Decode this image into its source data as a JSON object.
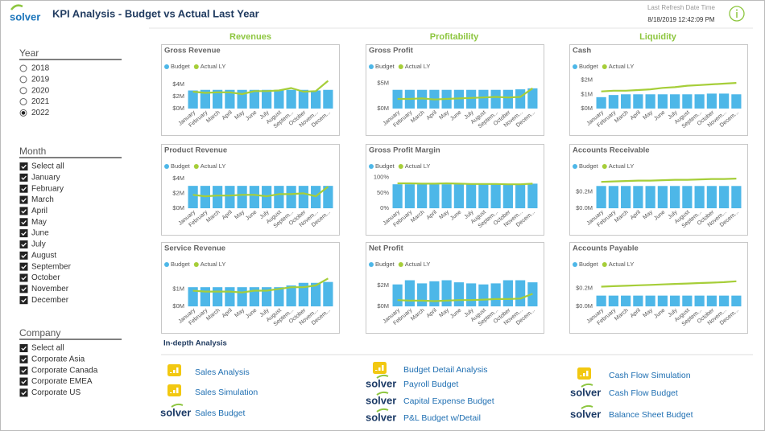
{
  "header": {
    "brand": "solver",
    "title": "KPI Analysis - Budget vs Actual Last Year",
    "refresh_label": "Last Refresh Date Time",
    "refresh_time": "8/18/2019 12:42:09 PM"
  },
  "filters": [
    {
      "title": "Year",
      "kind": "radio",
      "options": [
        "2018",
        "2019",
        "2020",
        "2021",
        "2022"
      ],
      "selected": [
        false,
        false,
        false,
        false,
        true
      ]
    },
    {
      "title": "Month",
      "kind": "checkbox",
      "options": [
        "Select all",
        "January",
        "February",
        "March",
        "April",
        "May",
        "June",
        "July",
        "August",
        "September",
        "October",
        "November",
        "December"
      ],
      "selected": [
        true,
        true,
        true,
        true,
        true,
        true,
        true,
        true,
        true,
        true,
        true,
        true,
        true
      ]
    },
    {
      "title": "Company",
      "kind": "checkbox",
      "options": [
        "Select all",
        "Corporate Asia",
        "Corporate Canada",
        "Corporate EMEA",
        "Corporate US"
      ],
      "selected": [
        true,
        true,
        true,
        true,
        true
      ]
    }
  ],
  "sections": [
    "Revenues",
    "Profitability",
    "Liquidity"
  ],
  "chart_data": [
    {
      "type": "combo",
      "title": "Gross Revenue",
      "categories": [
        "January",
        "February",
        "March",
        "April",
        "May",
        "June",
        "July",
        "August",
        "Septem...",
        "October",
        "Novem...",
        "Decem..."
      ],
      "series": [
        {
          "name": "Budget",
          "type": "bar",
          "color": "#4db7e8",
          "values": [
            3.0,
            3.1,
            3.1,
            3.1,
            3.1,
            3.1,
            3.1,
            3.1,
            3.1,
            3.1,
            3.0,
            3.1
          ]
        },
        {
          "name": "Actual LY",
          "type": "line",
          "color": "#a6ce39",
          "values": [
            2.8,
            2.6,
            2.7,
            2.7,
            2.4,
            2.9,
            2.9,
            3.0,
            3.4,
            2.8,
            2.9,
            4.6
          ]
        }
      ],
      "ylim": [
        0,
        5.2
      ],
      "yticks": [
        {
          "value": 0,
          "label": "$0M"
        },
        {
          "value": 2,
          "label": "$2M"
        },
        {
          "value": 4,
          "label": "$4M"
        }
      ]
    },
    {
      "type": "combo",
      "title": "Product Revenue",
      "categories": [
        "January",
        "February",
        "March",
        "April",
        "May",
        "June",
        "July",
        "August",
        "Septem...",
        "October",
        "Novem...",
        "Decem..."
      ],
      "series": [
        {
          "name": "Budget",
          "type": "bar",
          "color": "#4db7e8",
          "values": [
            3.0,
            3.0,
            3.0,
            3.0,
            3.0,
            3.0,
            3.0,
            3.0,
            3.0,
            3.0,
            3.0,
            3.0
          ]
        },
        {
          "name": "Actual LY",
          "type": "line",
          "color": "#a6ce39",
          "values": [
            1.8,
            1.6,
            1.7,
            1.7,
            1.8,
            1.8,
            1.6,
            1.9,
            1.9,
            2.0,
            1.6,
            2.9
          ]
        }
      ],
      "ylim": [
        0,
        4.2
      ],
      "yticks": [
        {
          "value": 0,
          "label": "$0M"
        },
        {
          "value": 2,
          "label": "$2M"
        },
        {
          "value": 4,
          "label": "$4M"
        }
      ]
    },
    {
      "type": "combo",
      "title": "Service Revenue",
      "categories": [
        "January",
        "February",
        "March",
        "April",
        "May",
        "June",
        "July",
        "August",
        "Septem...",
        "October",
        "Novem...",
        "Decem..."
      ],
      "series": [
        {
          "name": "Budget",
          "type": "bar",
          "color": "#4db7e8",
          "values": [
            1.1,
            1.1,
            1.1,
            1.1,
            1.1,
            1.1,
            1.1,
            1.1,
            1.2,
            1.35,
            1.35,
            1.4
          ]
        },
        {
          "name": "Actual LY",
          "type": "line",
          "color": "#a6ce39",
          "values": [
            0.9,
            0.85,
            0.85,
            0.85,
            0.8,
            0.9,
            0.9,
            1.0,
            1.1,
            1.1,
            1.2,
            1.6
          ]
        }
      ],
      "ylim": [
        0,
        1.8
      ],
      "yticks": [
        {
          "value": 0,
          "label": "$0M"
        },
        {
          "value": 1,
          "label": "$1M"
        }
      ]
    },
    {
      "type": "combo",
      "title": "Gross Profit",
      "categories": [
        "January",
        "February",
        "March",
        "April",
        "May",
        "June",
        "July",
        "August",
        "Septem...",
        "October",
        "Novem...",
        "Decem..."
      ],
      "series": [
        {
          "name": "Budget",
          "type": "bar",
          "color": "#4db7e8",
          "values": [
            3.7,
            3.7,
            3.7,
            3.7,
            3.7,
            3.7,
            3.7,
            3.7,
            3.7,
            3.7,
            3.8,
            4.0
          ]
        },
        {
          "name": "Actual LY",
          "type": "line",
          "color": "#a6ce39",
          "values": [
            1.9,
            1.9,
            2.0,
            1.8,
            1.9,
            2.0,
            2.1,
            2.2,
            2.3,
            2.2,
            2.3,
            4.0
          ]
        }
      ],
      "ylim": [
        0,
        6.2
      ],
      "yticks": [
        {
          "value": 0,
          "label": "$0M"
        },
        {
          "value": 5,
          "label": "$5M"
        }
      ]
    },
    {
      "type": "combo",
      "title": "Gross Profit Margin",
      "categories": [
        "January",
        "February",
        "March",
        "April",
        "May",
        "June",
        "July",
        "August",
        "Septem...",
        "October",
        "Novem...",
        "Decem..."
      ],
      "series": [
        {
          "name": "Budget",
          "type": "bar",
          "color": "#4db7e8",
          "values": [
            78,
            78,
            78,
            78,
            78,
            78,
            78,
            78,
            78,
            78,
            78,
            80
          ]
        },
        {
          "name": "Actual LY",
          "type": "line",
          "color": "#a6ce39",
          "values": [
            81,
            81,
            80,
            80,
            81,
            80,
            79,
            79,
            79,
            78,
            78,
            80
          ]
        }
      ],
      "ylim": [
        0,
        102
      ],
      "yticks": [
        {
          "value": 0,
          "label": "0%"
        },
        {
          "value": 50,
          "label": "50%"
        },
        {
          "value": 100,
          "label": "100%"
        }
      ]
    },
    {
      "type": "combo",
      "title": "Net Profit",
      "categories": [
        "January",
        "February",
        "March",
        "April",
        "May",
        "June",
        "July",
        "August",
        "Septem...",
        "October",
        "Novem...",
        "Decem..."
      ],
      "series": [
        {
          "name": "Budget",
          "type": "bar",
          "color": "#4db7e8",
          "values": [
            2.1,
            2.5,
            2.2,
            2.4,
            2.5,
            2.3,
            2.2,
            2.1,
            2.2,
            2.5,
            2.5,
            2.3
          ]
        },
        {
          "name": "Actual LY",
          "type": "line",
          "color": "#a6ce39",
          "values": [
            0.6,
            0.55,
            0.55,
            0.5,
            0.55,
            0.6,
            0.6,
            0.65,
            0.7,
            0.7,
            0.75,
            1.2
          ]
        }
      ],
      "ylim": [
        0,
        3.0
      ],
      "yticks": [
        {
          "value": 0,
          "label": "$0M"
        },
        {
          "value": 2,
          "label": "$2M"
        }
      ]
    },
    {
      "type": "combo",
      "title": "Cash",
      "categories": [
        "January",
        "February",
        "March",
        "April",
        "May",
        "June",
        "July",
        "August",
        "Septem...",
        "October",
        "Novem...",
        "Decem..."
      ],
      "series": [
        {
          "name": "Budget",
          "type": "bar",
          "color": "#4db7e8",
          "values": [
            0.8,
            0.95,
            1.0,
            1.0,
            1.0,
            1.0,
            1.0,
            1.0,
            1.0,
            1.05,
            1.05,
            1.0
          ]
        },
        {
          "name": "Actual LY",
          "type": "line",
          "color": "#a6ce39",
          "values": [
            1.2,
            1.25,
            1.25,
            1.3,
            1.35,
            1.45,
            1.5,
            1.6,
            1.65,
            1.7,
            1.75,
            1.8
          ]
        }
      ],
      "ylim": [
        0,
        2.2
      ],
      "yticks": [
        {
          "value": 0,
          "label": "$0M"
        },
        {
          "value": 1,
          "label": "$1M"
        },
        {
          "value": 2,
          "label": "$2M"
        }
      ]
    },
    {
      "type": "combo",
      "title": "Accounts Receivable",
      "categories": [
        "January",
        "February",
        "March",
        "April",
        "May",
        "June",
        "July",
        "August",
        "Septem...",
        "October",
        "Novem...",
        "Decem..."
      ],
      "series": [
        {
          "name": "Budget",
          "type": "bar",
          "color": "#4db7e8",
          "values": [
            0.27,
            0.27,
            0.27,
            0.27,
            0.27,
            0.27,
            0.27,
            0.27,
            0.27,
            0.27,
            0.27,
            0.27
          ]
        },
        {
          "name": "Actual LY",
          "type": "line",
          "color": "#a6ce39",
          "values": [
            0.32,
            0.325,
            0.33,
            0.335,
            0.335,
            0.34,
            0.345,
            0.345,
            0.35,
            0.355,
            0.355,
            0.36
          ]
        }
      ],
      "ylim": [
        0,
        0.38
      ],
      "yticks": [
        {
          "value": 0,
          "label": "$0.0M"
        },
        {
          "value": 0.2,
          "label": "$0.2M"
        }
      ]
    },
    {
      "type": "combo",
      "title": "Accounts Payable",
      "categories": [
        "January",
        "February",
        "March",
        "April",
        "May",
        "June",
        "July",
        "August",
        "Septem...",
        "October",
        "Novem...",
        "Decem..."
      ],
      "series": [
        {
          "name": "Budget",
          "type": "bar",
          "color": "#4db7e8",
          "values": [
            0.12,
            0.12,
            0.12,
            0.12,
            0.12,
            0.12,
            0.12,
            0.12,
            0.12,
            0.12,
            0.12,
            0.12
          ]
        },
        {
          "name": "Actual LY",
          "type": "line",
          "color": "#a6ce39",
          "values": [
            0.22,
            0.225,
            0.23,
            0.235,
            0.24,
            0.245,
            0.25,
            0.255,
            0.26,
            0.265,
            0.27,
            0.28
          ]
        }
      ],
      "ylim": [
        0,
        0.35
      ],
      "yticks": [
        {
          "value": 0,
          "label": "$0.0M"
        },
        {
          "value": 0.2,
          "label": "$0.2M"
        }
      ]
    }
  ],
  "links_title": "In-depth Analysis",
  "links": [
    [
      {
        "label": "Sales  Analysis",
        "icon": "report"
      },
      {
        "label": "Sales Simulation",
        "icon": "report"
      },
      {
        "label": "Sales Budget",
        "icon": "solver"
      }
    ],
    [
      {
        "label": "Budget Detail Analysis",
        "icon": "report"
      },
      {
        "label": "Payroll Budget",
        "icon": "solver"
      },
      {
        "label": "Capital Expense Budget",
        "icon": "solver"
      },
      {
        "label": "P&L Budget w/Detail",
        "icon": "solver"
      }
    ],
    [
      {
        "label": "Cash Flow Simulation",
        "icon": "report"
      },
      {
        "label": "Cash Flow Budget",
        "icon": "solver"
      },
      {
        "label": "Balance Sheet Budget",
        "icon": "solver"
      }
    ]
  ]
}
